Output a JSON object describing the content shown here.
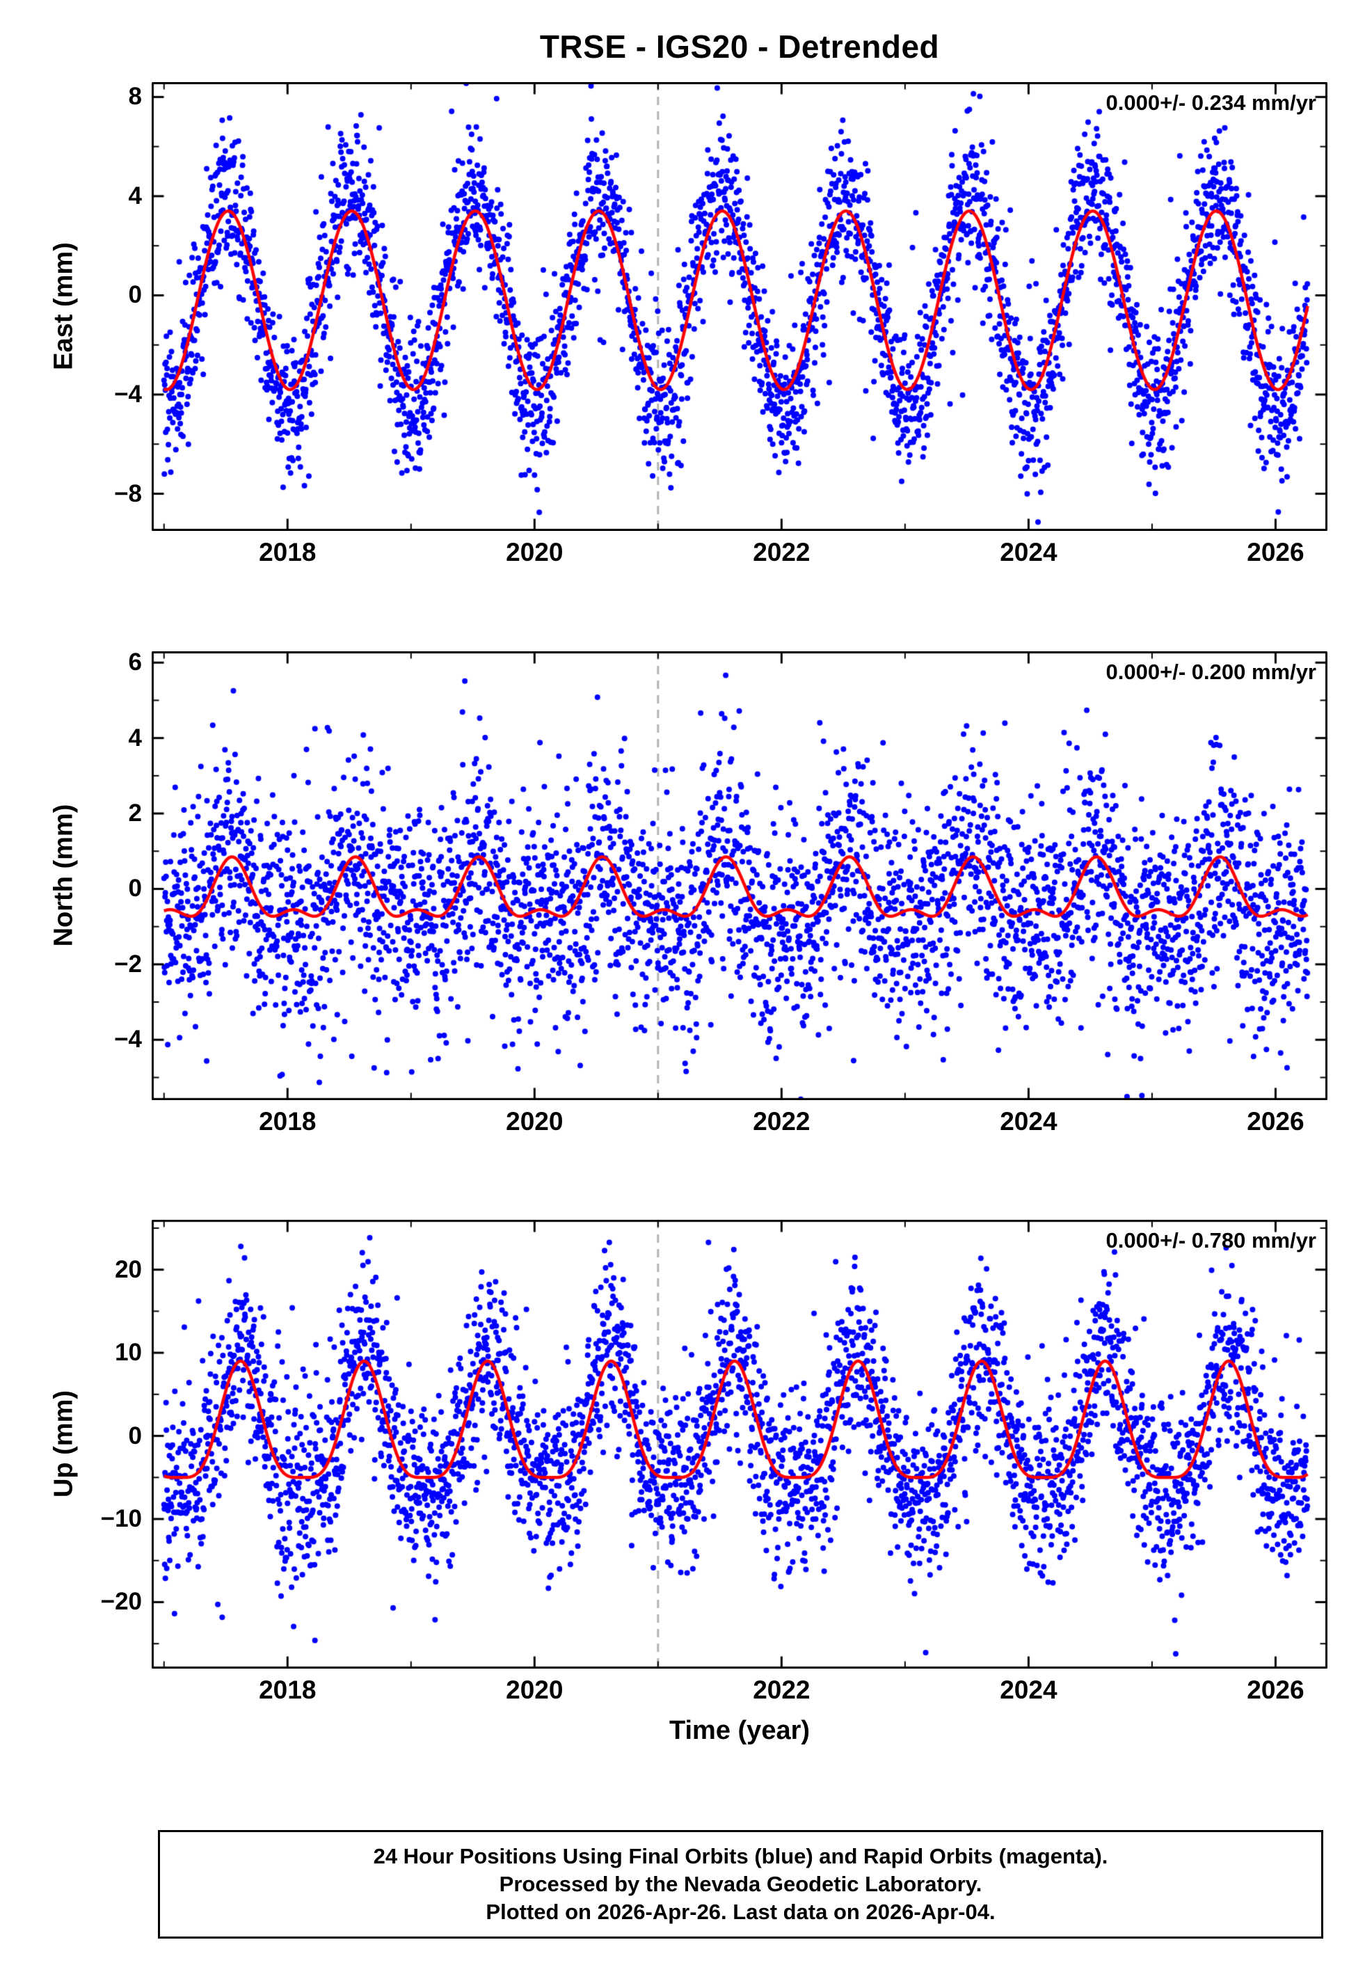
{
  "title": "TRSE - IGS20 - Detrended",
  "xlabel": "Time (year)",
  "caption": {
    "line1": "24 Hour Positions Using Final Orbits (blue) and Rapid Orbits (magenta).",
    "line2": "Processed by the Nevada Geodetic Laboratory.",
    "line3": "Plotted on 2026-Apr-26. Last data on 2026-Apr-04."
  },
  "colors": {
    "points": "#0000ff",
    "model_line": "#ff0000",
    "dashed_line": "#b3b3b3",
    "frame": "#000000"
  },
  "chart_data": [
    {
      "type": "scatter",
      "id": "east",
      "ylabel": "East (mm)",
      "annotation": "0.000+/- 0.234 mm/yr",
      "rate_mm_per_yr": 0.0,
      "rate_sigma_mm_per_yr": 0.234,
      "xlim": [
        2016.9,
        2026.42
      ],
      "xticks": [
        2018,
        2020,
        2022,
        2024,
        2026
      ],
      "x_minor_step": 1,
      "ylim": [
        -9.5,
        8.6
      ],
      "yticks": [
        -8,
        -4,
        0,
        4,
        8
      ],
      "y_minor_step": 2,
      "dashed_line_x": 2021.0,
      "data_start": 2017.0,
      "data_end": 2026.26,
      "model": {
        "mean": -0.2,
        "annual_amp": 3.6,
        "annual_peak": 0.52,
        "semiannual_amp": 0.0
      },
      "scatter": {
        "sigma": 1.45,
        "outlier_frac": 0.1,
        "outlier_sigma": 2.9,
        "amp_scale": 1.2,
        "points_per_year": 365
      },
      "legend_position": "top-right",
      "grid": false
    },
    {
      "type": "scatter",
      "id": "north",
      "ylabel": "North (mm)",
      "annotation": "0.000+/- 0.200 mm/yr",
      "rate_mm_per_yr": 0.0,
      "rate_sigma_mm_per_yr": 0.2,
      "xlim": [
        2016.9,
        2026.42
      ],
      "xticks": [
        2018,
        2020,
        2022,
        2024,
        2026
      ],
      "x_minor_step": 1,
      "ylim": [
        -5.6,
        6.3
      ],
      "yticks": [
        -4,
        -2,
        0,
        2,
        4,
        6
      ],
      "y_minor_step": 1,
      "dashed_line_x": 2021.0,
      "data_start": 2017.0,
      "data_end": 2026.26,
      "model": {
        "mean": -0.2,
        "annual_amp": 0.7,
        "annual_peak": 0.55,
        "semiannual_amp": 0.35
      },
      "scatter": {
        "sigma": 1.45,
        "outlier_frac": 0.08,
        "outlier_sigma": 2.6,
        "amp_scale": 1.2,
        "points_per_year": 365
      },
      "legend_position": "top-right",
      "grid": false
    },
    {
      "type": "scatter",
      "id": "up",
      "ylabel": "Up (mm)",
      "annotation": "0.000+/- 0.780 mm/yr",
      "rate_mm_per_yr": 0.0,
      "rate_sigma_mm_per_yr": 0.78,
      "xlim": [
        2016.9,
        2026.42
      ],
      "xticks": [
        2018,
        2020,
        2022,
        2024,
        2026
      ],
      "x_minor_step": 1,
      "ylim": [
        -28,
        26
      ],
      "yticks": [
        -20,
        -10,
        0,
        10,
        20
      ],
      "y_minor_step": 5,
      "dashed_line_x": 2021.0,
      "data_start": 2017.0,
      "data_end": 2026.26,
      "model": {
        "mean": 0.2,
        "annual_amp": 7.0,
        "annual_peak": 0.62,
        "semiannual_amp": 1.8
      },
      "scatter": {
        "sigma": 5.2,
        "outlier_frac": 0.08,
        "outlier_sigma": 9.5,
        "amp_scale": 1.2,
        "points_per_year": 365
      },
      "legend_position": "top-right",
      "grid": false
    }
  ]
}
